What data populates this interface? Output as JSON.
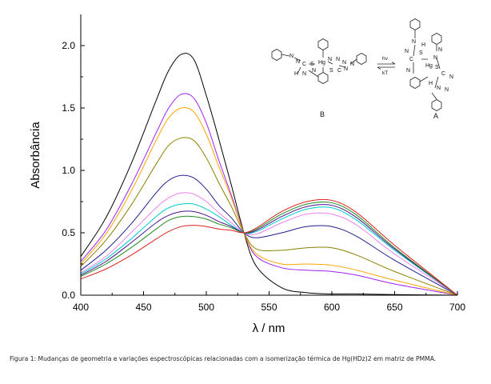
{
  "chart_data": {
    "type": "line",
    "title": "",
    "xlabel": "λ / nm",
    "ylabel": "Absorbância",
    "xlim": [
      400,
      700
    ],
    "ylim": [
      0,
      2.25
    ],
    "xticks": [
      "400",
      "450",
      "500",
      "550",
      "600",
      "650",
      "700"
    ],
    "yticks": [
      "0.0",
      "0.5",
      "1.0",
      "1.5",
      "2.0"
    ],
    "grid": false,
    "legend": "none",
    "isosbestic_point": {
      "x": 530,
      "y": 0.5
    },
    "series": [
      {
        "color": "#000000",
        "x": [
          400,
          420,
          440,
          460,
          470,
          480,
          490,
          500,
          510,
          520,
          530,
          540,
          560,
          580,
          600,
          620,
          650,
          700
        ],
        "y": [
          0.31,
          0.62,
          1.05,
          1.56,
          1.8,
          1.93,
          1.89,
          1.6,
          1.25,
          0.88,
          0.5,
          0.23,
          0.06,
          0.02,
          0.01,
          0.01,
          0.005,
          0.0
        ]
      },
      {
        "color": "#a020f0",
        "x": [
          400,
          420,
          440,
          460,
          470,
          480,
          490,
          500,
          510,
          520,
          530,
          540,
          560,
          580,
          600,
          620,
          650,
          700
        ],
        "y": [
          0.27,
          0.52,
          0.88,
          1.3,
          1.5,
          1.61,
          1.58,
          1.38,
          1.08,
          0.8,
          0.5,
          0.31,
          0.22,
          0.2,
          0.19,
          0.16,
          0.09,
          0.0
        ]
      },
      {
        "color": "#ffa500",
        "x": [
          400,
          420,
          440,
          460,
          470,
          480,
          490,
          500,
          510,
          520,
          530,
          540,
          560,
          580,
          600,
          620,
          650,
          700
        ],
        "y": [
          0.25,
          0.49,
          0.83,
          1.24,
          1.42,
          1.5,
          1.47,
          1.29,
          1.03,
          0.78,
          0.5,
          0.33,
          0.25,
          0.25,
          0.24,
          0.2,
          0.12,
          0.0
        ]
      },
      {
        "color": "#8b8000",
        "x": [
          400,
          420,
          440,
          460,
          470,
          480,
          490,
          500,
          510,
          520,
          530,
          540,
          560,
          580,
          600,
          620,
          650,
          700
        ],
        "y": [
          0.23,
          0.44,
          0.72,
          1.05,
          1.2,
          1.26,
          1.24,
          1.1,
          0.9,
          0.71,
          0.5,
          0.37,
          0.36,
          0.38,
          0.38,
          0.32,
          0.19,
          0.0
        ]
      },
      {
        "color": "#1f1f8f",
        "x": [
          400,
          420,
          440,
          460,
          470,
          480,
          490,
          500,
          510,
          520,
          530,
          540,
          560,
          580,
          600,
          620,
          650,
          700
        ],
        "y": [
          0.2,
          0.36,
          0.57,
          0.82,
          0.92,
          0.96,
          0.94,
          0.85,
          0.72,
          0.62,
          0.5,
          0.46,
          0.5,
          0.55,
          0.55,
          0.47,
          0.28,
          0.0
        ]
      },
      {
        "color": "#ee82ee",
        "x": [
          400,
          420,
          440,
          460,
          470,
          480,
          490,
          500,
          510,
          520,
          530,
          540,
          560,
          580,
          600,
          620,
          650,
          700
        ],
        "y": [
          0.18,
          0.31,
          0.5,
          0.7,
          0.78,
          0.82,
          0.81,
          0.75,
          0.66,
          0.58,
          0.5,
          0.49,
          0.58,
          0.65,
          0.65,
          0.56,
          0.33,
          0.0
        ]
      },
      {
        "color": "#00cccc",
        "x": [
          400,
          420,
          440,
          460,
          470,
          480,
          490,
          500,
          510,
          520,
          530,
          540,
          560,
          580,
          600,
          620,
          650,
          700
        ],
        "y": [
          0.17,
          0.29,
          0.45,
          0.63,
          0.7,
          0.73,
          0.73,
          0.69,
          0.63,
          0.56,
          0.5,
          0.51,
          0.61,
          0.69,
          0.7,
          0.6,
          0.36,
          0.0
        ]
      },
      {
        "color": "#4a148c",
        "x": [
          400,
          420,
          440,
          460,
          470,
          480,
          490,
          500,
          510,
          520,
          530,
          540,
          560,
          580,
          600,
          620,
          650,
          700
        ],
        "y": [
          0.16,
          0.27,
          0.42,
          0.58,
          0.64,
          0.67,
          0.67,
          0.64,
          0.59,
          0.55,
          0.5,
          0.52,
          0.63,
          0.71,
          0.72,
          0.62,
          0.37,
          0.0
        ]
      },
      {
        "color": "#228b22",
        "x": [
          400,
          420,
          440,
          460,
          470,
          480,
          490,
          500,
          510,
          520,
          530,
          540,
          560,
          580,
          600,
          620,
          650,
          700
        ],
        "y": [
          0.15,
          0.25,
          0.38,
          0.53,
          0.6,
          0.63,
          0.63,
          0.61,
          0.57,
          0.54,
          0.5,
          0.53,
          0.65,
          0.73,
          0.74,
          0.64,
          0.38,
          0.0
        ]
      },
      {
        "color": "#dd2222",
        "x": [
          400,
          420,
          440,
          460,
          470,
          480,
          490,
          500,
          510,
          520,
          530,
          540,
          560,
          580,
          600,
          620,
          650,
          700
        ],
        "y": [
          0.13,
          0.21,
          0.32,
          0.45,
          0.51,
          0.55,
          0.56,
          0.55,
          0.53,
          0.52,
          0.5,
          0.54,
          0.67,
          0.75,
          0.76,
          0.66,
          0.4,
          0.0
        ]
      }
    ]
  },
  "inset": {
    "label_b": "B",
    "label_a": "A",
    "arrow_top": "hν",
    "arrow_bottom": "kT",
    "b_atoms": [
      "N",
      "N",
      "C",
      "S",
      "Hg",
      "N",
      "N",
      "H",
      "N",
      "N",
      "S",
      "C",
      "N",
      "N",
      "N"
    ],
    "a_atoms": [
      "N",
      "H",
      "S",
      "C",
      "N",
      "N",
      "Hg",
      "S",
      "C",
      "N",
      "N",
      "N",
      "H",
      "N",
      "N"
    ]
  },
  "caption": "Figura 1: Mudanças de geometria e variações espectroscópicas relacionadas com a isomerização térmica de Hg(HDz)2 em matriz de PMMA."
}
